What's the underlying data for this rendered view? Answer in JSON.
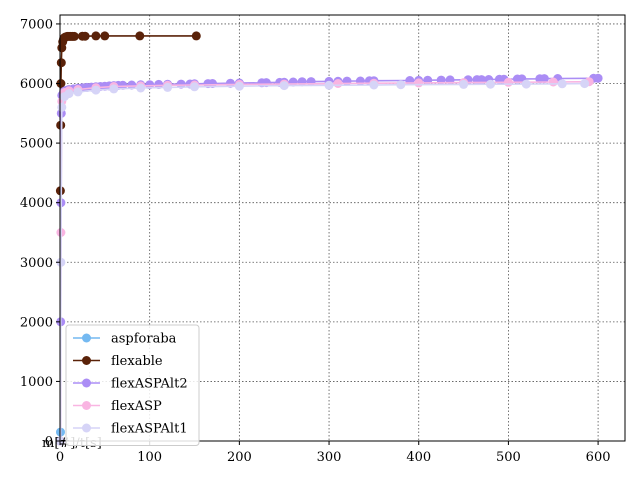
{
  "chart_data": {
    "type": "line",
    "xlim": [
      0,
      630
    ],
    "ylim": [
      0,
      7150
    ],
    "xticks": [
      0,
      100,
      200,
      300,
      400,
      500,
      600
    ],
    "yticks": [
      0,
      1000,
      2000,
      3000,
      4000,
      5000,
      6000,
      7000
    ],
    "grid": true,
    "legend_position": "lower-left",
    "corner_label": "m[#]/t[s]",
    "series": [
      {
        "name": "aspforaba",
        "color": "#74b9f1",
        "points": [
          [
            0.2,
            0
          ],
          [
            0.6,
            150
          ]
        ]
      },
      {
        "name": "flexable",
        "color": "#5a2209",
        "points": [
          [
            0.5,
            4200
          ],
          [
            0.8,
            5300
          ],
          [
            1,
            6000
          ],
          [
            1.5,
            6350
          ],
          [
            2,
            6600
          ],
          [
            3,
            6700
          ],
          [
            4,
            6750
          ],
          [
            5,
            6770
          ],
          [
            6,
            6780
          ],
          [
            8,
            6790
          ],
          [
            10,
            6790
          ],
          [
            12,
            6790
          ],
          [
            14,
            6790
          ],
          [
            16,
            6790
          ],
          [
            25,
            6795
          ],
          [
            28,
            6795
          ],
          [
            40,
            6800
          ],
          [
            50,
            6800
          ],
          [
            89,
            6800
          ],
          [
            152,
            6800
          ]
        ]
      },
      {
        "name": "flexASPAlt2",
        "color": "#ab8df5",
        "points": [
          [
            0.5,
            0
          ],
          [
            0.8,
            2000
          ],
          [
            1,
            4000
          ],
          [
            1.5,
            5500
          ],
          [
            2,
            5800
          ],
          [
            4,
            5860
          ],
          [
            6,
            5880
          ],
          [
            8,
            5890
          ],
          [
            10,
            5900
          ],
          [
            15,
            5910
          ],
          [
            20,
            5920
          ],
          [
            25,
            5930
          ],
          [
            30,
            5935
          ],
          [
            35,
            5940
          ],
          [
            40,
            5945
          ],
          [
            45,
            5950
          ],
          [
            50,
            5955
          ],
          [
            55,
            5960
          ],
          [
            60,
            5965
          ],
          [
            65,
            5968
          ],
          [
            70,
            5970
          ],
          [
            80,
            5975
          ],
          [
            90,
            5978
          ],
          [
            100,
            5980
          ],
          [
            110,
            5985
          ],
          [
            120,
            5988
          ],
          [
            135,
            5990
          ],
          [
            145,
            5992
          ],
          [
            150,
            5995
          ],
          [
            165,
            5998
          ],
          [
            170,
            6000
          ],
          [
            190,
            6005
          ],
          [
            200,
            6008
          ],
          [
            225,
            6012
          ],
          [
            230,
            6015
          ],
          [
            245,
            6018
          ],
          [
            250,
            6020
          ],
          [
            260,
            6025
          ],
          [
            270,
            6030
          ],
          [
            280,
            6032
          ],
          [
            300,
            6035
          ],
          [
            310,
            6038
          ],
          [
            320,
            6040
          ],
          [
            335,
            6042
          ],
          [
            345,
            6045
          ],
          [
            350,
            6048
          ],
          [
            390,
            6050
          ],
          [
            400,
            6052
          ],
          [
            410,
            6055
          ],
          [
            425,
            6058
          ],
          [
            435,
            6060
          ],
          [
            455,
            6062
          ],
          [
            465,
            6065
          ],
          [
            470,
            6066
          ],
          [
            478,
            6068
          ],
          [
            490,
            6070
          ],
          [
            495,
            6072
          ],
          [
            510,
            6075
          ],
          [
            515,
            6078
          ],
          [
            535,
            6080
          ],
          [
            540,
            6082
          ],
          [
            555,
            6085
          ],
          [
            595,
            6088
          ],
          [
            600,
            6090
          ]
        ]
      },
      {
        "name": "flexASP",
        "color": "#f9b5e2",
        "points": [
          [
            0.5,
            0
          ],
          [
            1,
            3500
          ],
          [
            2,
            5700
          ],
          [
            5,
            5850
          ],
          [
            10,
            5880
          ],
          [
            20,
            5900
          ],
          [
            40,
            5930
          ],
          [
            60,
            5950
          ],
          [
            90,
            5960
          ],
          [
            120,
            5970
          ],
          [
            150,
            5975
          ],
          [
            200,
            5985
          ],
          [
            250,
            5990
          ],
          [
            310,
            6000
          ],
          [
            350,
            6005
          ],
          [
            400,
            6010
          ],
          [
            450,
            6015
          ],
          [
            500,
            6020
          ],
          [
            550,
            6025
          ],
          [
            590,
            6030
          ]
        ]
      },
      {
        "name": "flexASPAlt1",
        "color": "#d6d4f7",
        "points": [
          [
            0.5,
            0
          ],
          [
            1,
            3000
          ],
          [
            2,
            5600
          ],
          [
            5,
            5780
          ],
          [
            10,
            5830
          ],
          [
            20,
            5860
          ],
          [
            40,
            5890
          ],
          [
            60,
            5910
          ],
          [
            90,
            5925
          ],
          [
            120,
            5935
          ],
          [
            150,
            5945
          ],
          [
            200,
            5955
          ],
          [
            250,
            5965
          ],
          [
            300,
            5970
          ],
          [
            350,
            5975
          ],
          [
            380,
            5980
          ],
          [
            450,
            5985
          ],
          [
            480,
            5988
          ],
          [
            520,
            5990
          ],
          [
            560,
            5995
          ],
          [
            585,
            5998
          ]
        ]
      }
    ]
  }
}
